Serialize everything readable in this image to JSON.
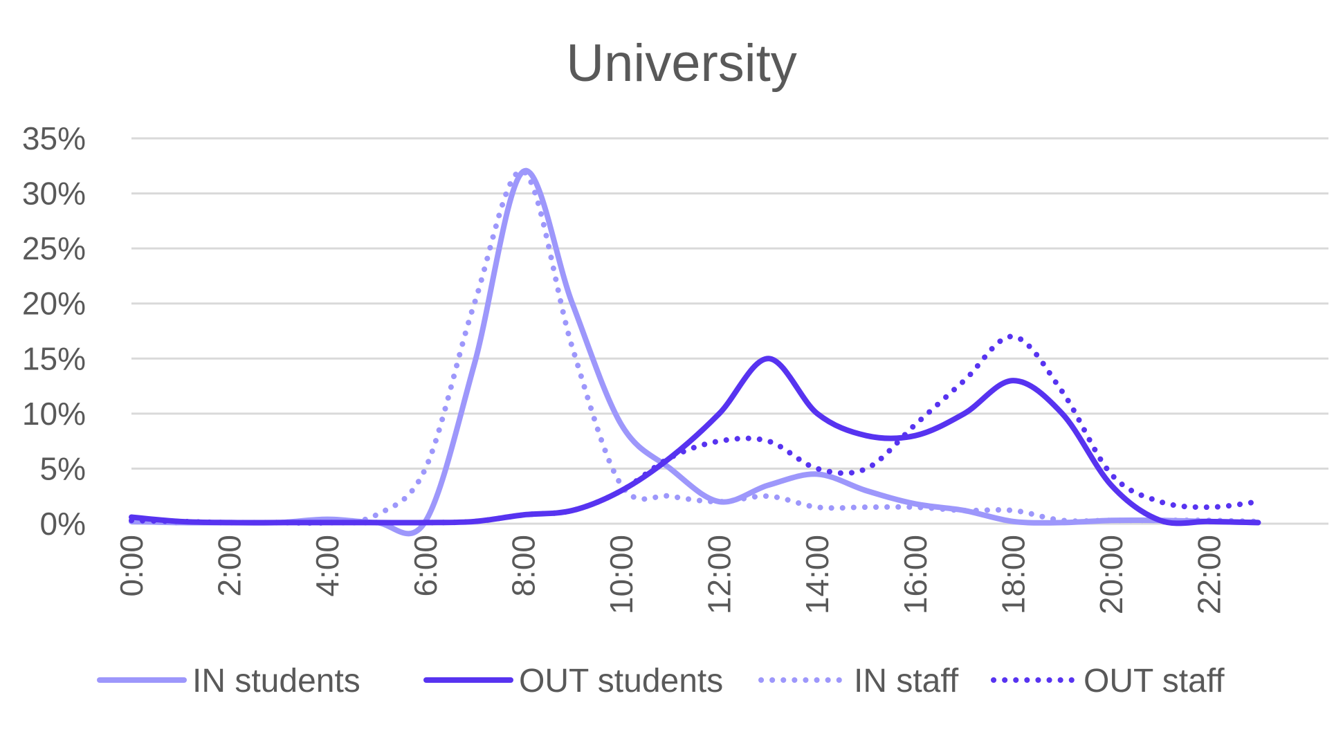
{
  "chart_data": {
    "type": "line",
    "title": "University",
    "xlabel": "",
    "ylabel": "",
    "ylim": [
      0,
      35
    ],
    "yticks": [
      "0%",
      "5%",
      "10%",
      "15%",
      "20%",
      "25%",
      "30%",
      "35%"
    ],
    "xtick_labels": [
      "0:00",
      "2:00",
      "4:00",
      "6:00",
      "8:00",
      "10:00",
      "12:00",
      "14:00",
      "16:00",
      "18:00",
      "20:00",
      "22:00"
    ],
    "x": [
      0,
      1,
      2,
      3,
      4,
      5,
      6,
      7,
      8,
      9,
      10,
      11,
      12,
      13,
      14,
      15,
      16,
      17,
      18,
      19,
      20,
      21,
      22,
      23
    ],
    "grid": true,
    "legend_position": "bottom",
    "series": [
      {
        "name": "IN students",
        "color": "#9d97fb",
        "style": "solid",
        "values": [
          0.2,
          0.1,
          0.1,
          0.1,
          0.4,
          0.1,
          0.2,
          14.5,
          32.0,
          20.0,
          9.0,
          5.0,
          2.0,
          3.5,
          4.5,
          3.0,
          1.8,
          1.2,
          0.2,
          0.1,
          0.3,
          0.3,
          0.2,
          0.1
        ]
      },
      {
        "name": "OUT students",
        "color": "#5733f0",
        "style": "solid",
        "values": [
          0.6,
          0.2,
          0.1,
          0.1,
          0.1,
          0.1,
          0.1,
          0.2,
          0.8,
          1.2,
          3.0,
          6.0,
          10.0,
          15.0,
          10.0,
          8.0,
          8.0,
          10.0,
          13.0,
          10.0,
          3.5,
          0.3,
          0.2,
          0.1
        ]
      },
      {
        "name": "IN staff",
        "color": "#9d97fb",
        "style": "dotted",
        "values": [
          0.2,
          0.1,
          0.1,
          0.1,
          0.1,
          0.8,
          5.0,
          20.0,
          32.0,
          16.0,
          3.5,
          2.5,
          2.0,
          2.5,
          1.5,
          1.5,
          1.5,
          1.2,
          1.2,
          0.3,
          0.3,
          0.3,
          0.3,
          0.2
        ]
      },
      {
        "name": "OUT staff",
        "color": "#5733f0",
        "style": "dotted",
        "values": [
          0.3,
          0.2,
          0.1,
          0.1,
          0.1,
          0.1,
          0.1,
          0.2,
          0.8,
          1.2,
          3.0,
          6.0,
          7.5,
          7.5,
          5.0,
          5.0,
          9.0,
          13.0,
          17.0,
          12.0,
          4.5,
          2.0,
          1.5,
          2.0
        ]
      }
    ]
  }
}
